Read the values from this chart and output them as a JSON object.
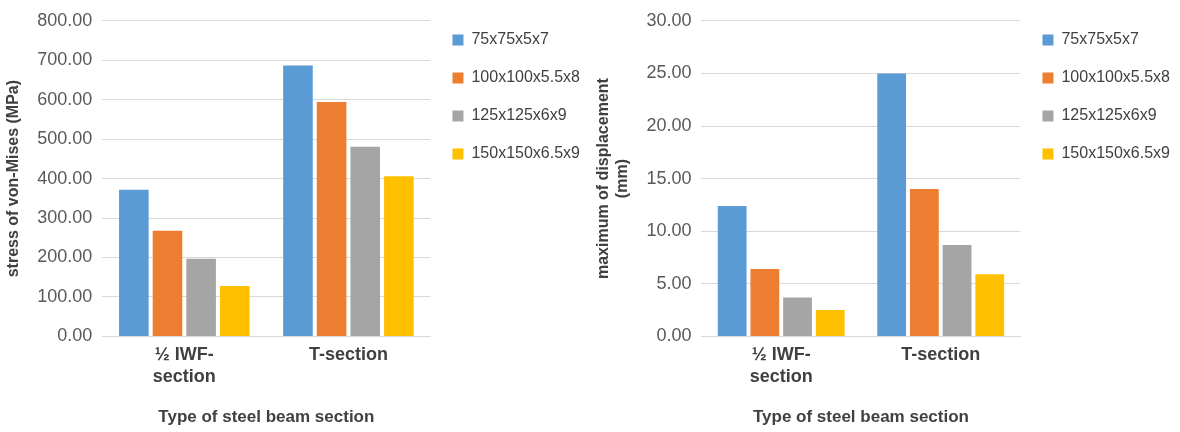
{
  "chart_data": [
    {
      "type": "bar",
      "categories": [
        "½ IWF-section",
        "T-section"
      ],
      "xlabel": "Type of steel beam section",
      "ylabel": "stress of von-Mises (MPa)",
      "series": [
        {
          "name": "75x75x5x7",
          "color": "#5b9bd5",
          "values": [
            372,
            687
          ]
        },
        {
          "name": "100x100x5.5x8",
          "color": "#ed7d31",
          "values": [
            268,
            594
          ]
        },
        {
          "name": "125x125x6x9",
          "color": "#a5a5a5",
          "values": [
            197,
            481
          ]
        },
        {
          "name": "150x150x6.5x9",
          "color": "#ffc000",
          "values": [
            128,
            406
          ]
        }
      ],
      "ylim": [
        0,
        800
      ],
      "yticks": [
        {
          "value": 0,
          "label": "0.00"
        },
        {
          "value": 100,
          "label": "100.00"
        },
        {
          "value": 200,
          "label": "200.00"
        },
        {
          "value": 300,
          "label": "300.00"
        },
        {
          "value": 400,
          "label": "400.00"
        },
        {
          "value": 500,
          "label": "500.00"
        },
        {
          "value": 600,
          "label": "600.00"
        },
        {
          "value": 700,
          "label": "700.00"
        },
        {
          "value": 800,
          "label": "800.00"
        }
      ],
      "grid": "y",
      "legend": "top right"
    },
    {
      "type": "bar",
      "categories": [
        "½ IWF-section",
        "T-section"
      ],
      "xlabel": "Type of steel beam section",
      "ylabel": "maximum of displacement (mm)",
      "series": [
        {
          "name": "75x75x5x7",
          "color": "#5b9bd5",
          "values": [
            12.4,
            25.0
          ]
        },
        {
          "name": "100x100x5.5x8",
          "color": "#ed7d31",
          "values": [
            6.4,
            14.0
          ]
        },
        {
          "name": "125x125x6x9",
          "color": "#a5a5a5",
          "values": [
            3.7,
            8.7
          ]
        },
        {
          "name": "150x150x6.5x9",
          "color": "#ffc000",
          "values": [
            2.5,
            5.9
          ]
        }
      ],
      "ylim": [
        0,
        30
      ],
      "yticks": [
        {
          "value": 0,
          "label": "0.00"
        },
        {
          "value": 5,
          "label": "5.00"
        },
        {
          "value": 10,
          "label": "10.00"
        },
        {
          "value": 15,
          "label": "15.00"
        },
        {
          "value": 20,
          "label": "20.00"
        },
        {
          "value": 25,
          "label": "25.00"
        },
        {
          "value": 30,
          "label": "30.00"
        }
      ],
      "grid": "y",
      "legend": "top right"
    }
  ]
}
